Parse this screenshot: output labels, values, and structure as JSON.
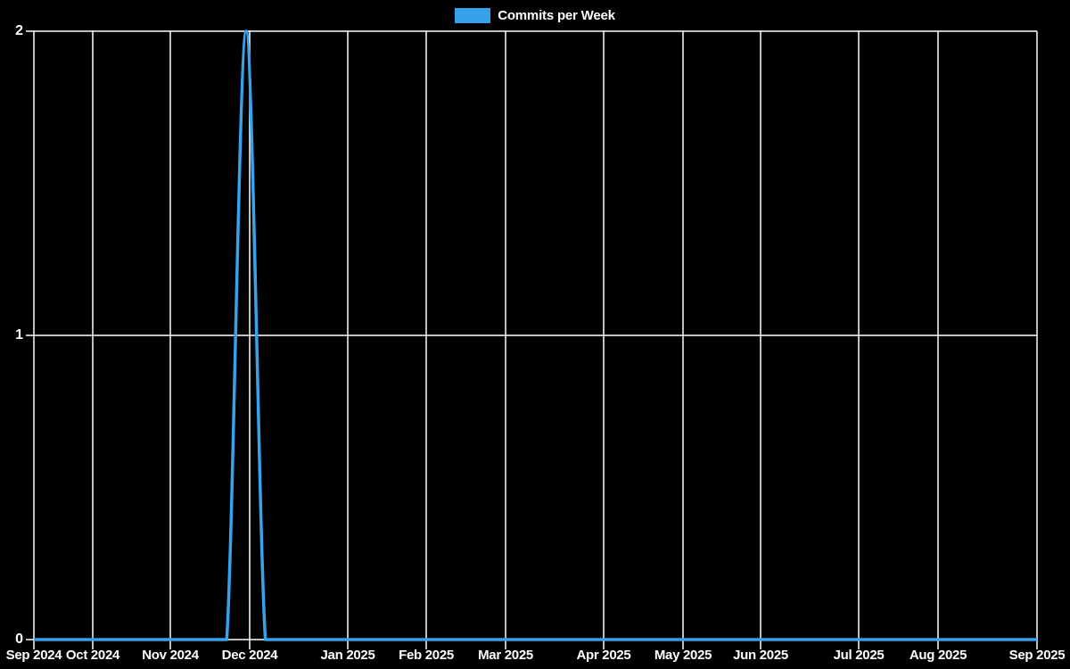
{
  "legend": {
    "label": "Commits per Week",
    "swatch_color": "#36a2eb"
  },
  "colors": {
    "background": "#000000",
    "grid": "#ffffff",
    "text": "#ffffff",
    "line": "#36a2eb"
  },
  "chart_data": {
    "type": "line",
    "title": "Commits per Week",
    "xlabel": "",
    "ylabel": "",
    "ylim": [
      0,
      2
    ],
    "grid": true,
    "legend_position": "top",
    "smoothing": true,
    "line_width": 3.5,
    "y_ticks": [
      {
        "label": "0",
        "value": 0
      },
      {
        "label": "1",
        "value": 1
      },
      {
        "label": "2",
        "value": 2
      }
    ],
    "x_ticks": [
      {
        "label": "Sep 2024",
        "pos": 0.0
      },
      {
        "label": "Oct 2024",
        "pos": 0.0587
      },
      {
        "label": "Nov 2024",
        "pos": 0.136
      },
      {
        "label": "Dec 2024",
        "pos": 0.2151
      },
      {
        "label": "Jan 2025",
        "pos": 0.3129
      },
      {
        "label": "Feb 2025",
        "pos": 0.3911
      },
      {
        "label": "Mar 2025",
        "pos": 0.4702
      },
      {
        "label": "Apr 2025",
        "pos": 0.568
      },
      {
        "label": "May 2025",
        "pos": 0.6471
      },
      {
        "label": "Jun 2025",
        "pos": 0.7244
      },
      {
        "label": "Jul 2025",
        "pos": 0.8222
      },
      {
        "label": "Aug 2025",
        "pos": 0.9013
      },
      {
        "label": "Sep 2025",
        "pos": 1.0
      }
    ],
    "series": [
      {
        "name": "Commits per Week",
        "interval": "weekly",
        "peak": {
          "near_tick": "Dec 2024",
          "value": 2
        },
        "values": [
          0,
          0,
          0,
          0,
          0,
          0,
          0,
          0,
          0,
          0,
          0,
          2,
          0,
          0,
          0,
          0,
          0,
          0,
          0,
          0,
          0,
          0,
          0,
          0,
          0,
          0,
          0,
          0,
          0,
          0,
          0,
          0,
          0,
          0,
          0,
          0,
          0,
          0,
          0,
          0,
          0,
          0,
          0,
          0,
          0,
          0,
          0,
          0,
          0,
          0,
          0,
          0,
          0
        ]
      }
    ]
  }
}
